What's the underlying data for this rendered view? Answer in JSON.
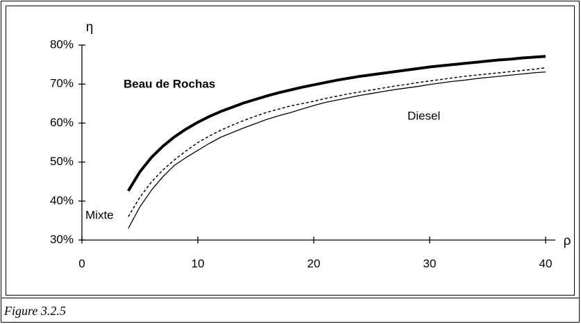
{
  "chart_data": {
    "type": "line",
    "caption": "Figure 3.2.5",
    "y_label": "η",
    "x_label": "ρ",
    "x": [
      4,
      5,
      6,
      7,
      8,
      9,
      10,
      11,
      12,
      13,
      14,
      15,
      16,
      17,
      18,
      19,
      20,
      21,
      22,
      23,
      24,
      25,
      26,
      27,
      28,
      29,
      30,
      31,
      32,
      33,
      34,
      35,
      36,
      37,
      38,
      39,
      40
    ],
    "series": [
      {
        "name": "Beau de Rochas",
        "color": "#000000",
        "style": "thick",
        "values": [
          42.6,
          47.5,
          51.2,
          54.1,
          56.5,
          58.5,
          60.2,
          61.7,
          63.0,
          64.1,
          65.2,
          66.1,
          67.0,
          67.8,
          68.5,
          69.2,
          69.8,
          70.4,
          71.0,
          71.5,
          72.0,
          72.4,
          72.8,
          73.2,
          73.6,
          74.0,
          74.4,
          74.7,
          75.0,
          75.3,
          75.6,
          75.9,
          76.2,
          76.4,
          76.7,
          76.9,
          77.1
        ]
      },
      {
        "name": "Mixte",
        "color": "#000000",
        "style": "dashed",
        "values": [
          36.0,
          41.0,
          44.9,
          48.0,
          50.6,
          52.9,
          55.0,
          56.7,
          58.2,
          59.5,
          60.7,
          61.8,
          62.8,
          63.6,
          64.4,
          65.0,
          65.6,
          66.3,
          66.9,
          67.5,
          68.0,
          68.5,
          69.0,
          69.5,
          69.9,
          70.4,
          70.8,
          71.2,
          71.6,
          72.0,
          72.3,
          72.6,
          72.9,
          73.2,
          73.5,
          73.8,
          74.2
        ]
      },
      {
        "name": "Diesel",
        "color": "#000000",
        "style": "thin",
        "values": [
          33.0,
          38.5,
          42.8,
          46.3,
          49.2,
          51.2,
          53.0,
          54.8,
          56.4,
          57.6,
          58.8,
          59.9,
          61.0,
          61.9,
          62.7,
          63.6,
          64.5,
          65.3,
          65.9,
          66.5,
          67.1,
          67.6,
          68.1,
          68.6,
          69.0,
          69.4,
          69.9,
          70.3,
          70.7,
          71.0,
          71.4,
          71.7,
          72.0,
          72.3,
          72.6,
          72.9,
          73.1
        ]
      }
    ],
    "xlim": [
      0,
      40
    ],
    "xticks": [
      0,
      10,
      20,
      30,
      40
    ],
    "ylim": [
      30,
      80
    ],
    "yticks": [
      {
        "value": 30,
        "label": "30%"
      },
      {
        "value": 40,
        "label": "40%"
      },
      {
        "value": 50,
        "label": "50%"
      },
      {
        "value": 60,
        "label": "60%"
      },
      {
        "value": 70,
        "label": "70%"
      },
      {
        "value": 80,
        "label": "80%"
      }
    ],
    "grid": false
  }
}
